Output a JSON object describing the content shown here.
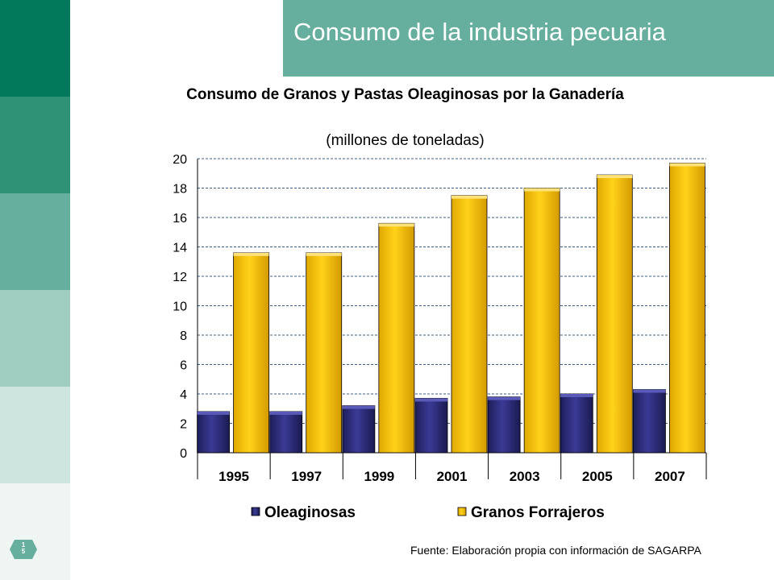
{
  "slide": {
    "title": "Consumo de la industria pecuaria",
    "page_number": "1\n5",
    "source": "Fuente:  Elaboración propia con información de SAGARPA",
    "side_band_colors": [
      "#007a5a",
      "#2f9175",
      "#66ae9d",
      "#9fcdc0",
      "#cde5de",
      "#eef5f3"
    ],
    "accent_color": "#66ae9d"
  },
  "chart_data": {
    "type": "bar",
    "title": "Consumo de Granos y Pastas Oleaginosas por la Ganadería",
    "subtitle": "(millones de toneladas)",
    "categories": [
      "1995",
      "1997",
      "1999",
      "2001",
      "2003",
      "2005",
      "2007"
    ],
    "series": [
      {
        "name": "Oleaginosas",
        "color": "#2d2d7a",
        "values": [
          2.8,
          2.8,
          3.2,
          3.7,
          3.8,
          4.0,
          4.3
        ]
      },
      {
        "name": "Granos Forrajeros",
        "color": "#ffcc00",
        "values": [
          13.6,
          13.6,
          15.6,
          17.5,
          18.0,
          18.9,
          19.7
        ]
      }
    ],
    "ylim": [
      0,
      20
    ],
    "yticks": [
      0,
      2,
      4,
      6,
      8,
      10,
      12,
      14,
      16,
      18,
      20
    ],
    "grid": true,
    "legend_position": "bottom"
  }
}
